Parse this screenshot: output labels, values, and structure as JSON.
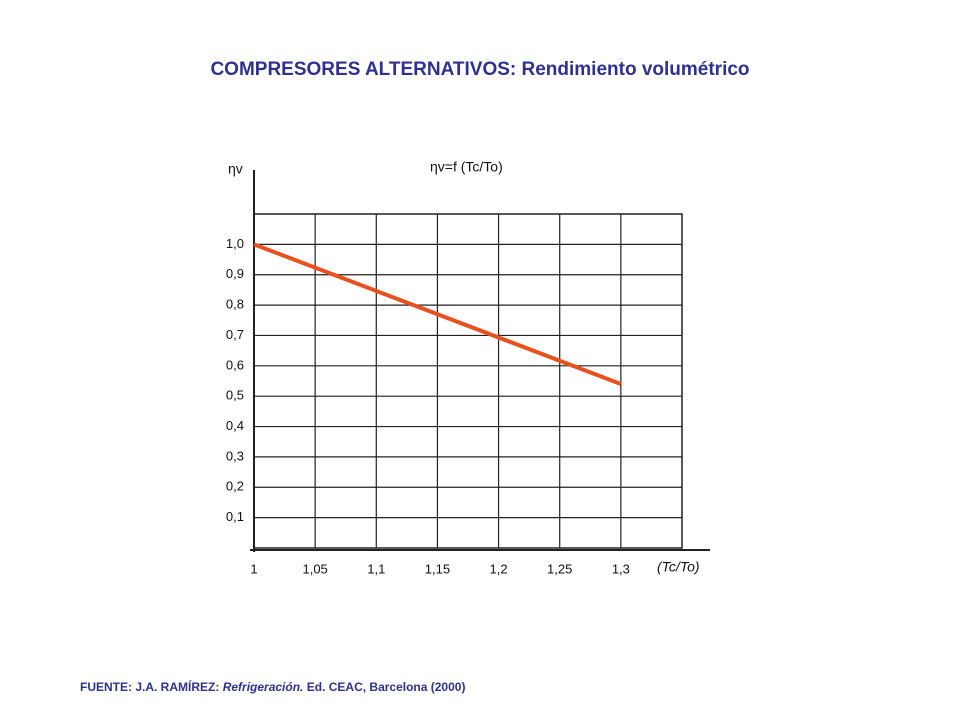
{
  "chart_data": {
    "type": "line",
    "title": "COMPRESORES ALTERNATIVOS: Rendimiento volumétrico",
    "subtitle": "ηv=f (Tc/To)",
    "y_label": "ηv",
    "x_label": "(Tc/To)",
    "x": [
      1,
      1.3
    ],
    "series": [
      {
        "name": "ηv",
        "color": "#e8501e",
        "values": [
          1.0,
          0.54
        ]
      }
    ],
    "xlim": [
      1,
      1.35
    ],
    "ylim": [
      0,
      1.1
    ],
    "xticks": [
      1,
      {
        "value": 1.05,
        "label": "1,05"
      },
      {
        "value": 1.1,
        "label": "1,1"
      },
      {
        "value": 1.15,
        "label": "1,15"
      },
      {
        "value": 1.2,
        "label": "1,2"
      },
      {
        "value": 1.25,
        "label": "1,25"
      },
      {
        "value": 1.3,
        "label": "1,3"
      }
    ],
    "yticks": [
      {
        "value": 0.1,
        "label": "0,1"
      },
      {
        "value": 0.2,
        "label": "0,2"
      },
      {
        "value": 0.3,
        "label": "0,3"
      },
      {
        "value": 0.4,
        "label": "0,4"
      },
      {
        "value": 0.5,
        "label": "0,5"
      },
      {
        "value": 0.6,
        "label": "0,6"
      },
      {
        "value": 0.7,
        "label": "0,7"
      },
      {
        "value": 0.8,
        "label": "0,8"
      },
      {
        "value": 0.9,
        "label": "0,9"
      },
      {
        "value": 1.0,
        "label": "1,0"
      }
    ],
    "grid": true
  },
  "source": {
    "prefix": "FUENTE: J.A. RAMÍREZ:",
    "work": "Refrigeración.",
    "suffix": "Ed. CEAC, Barcelona (2000)"
  }
}
